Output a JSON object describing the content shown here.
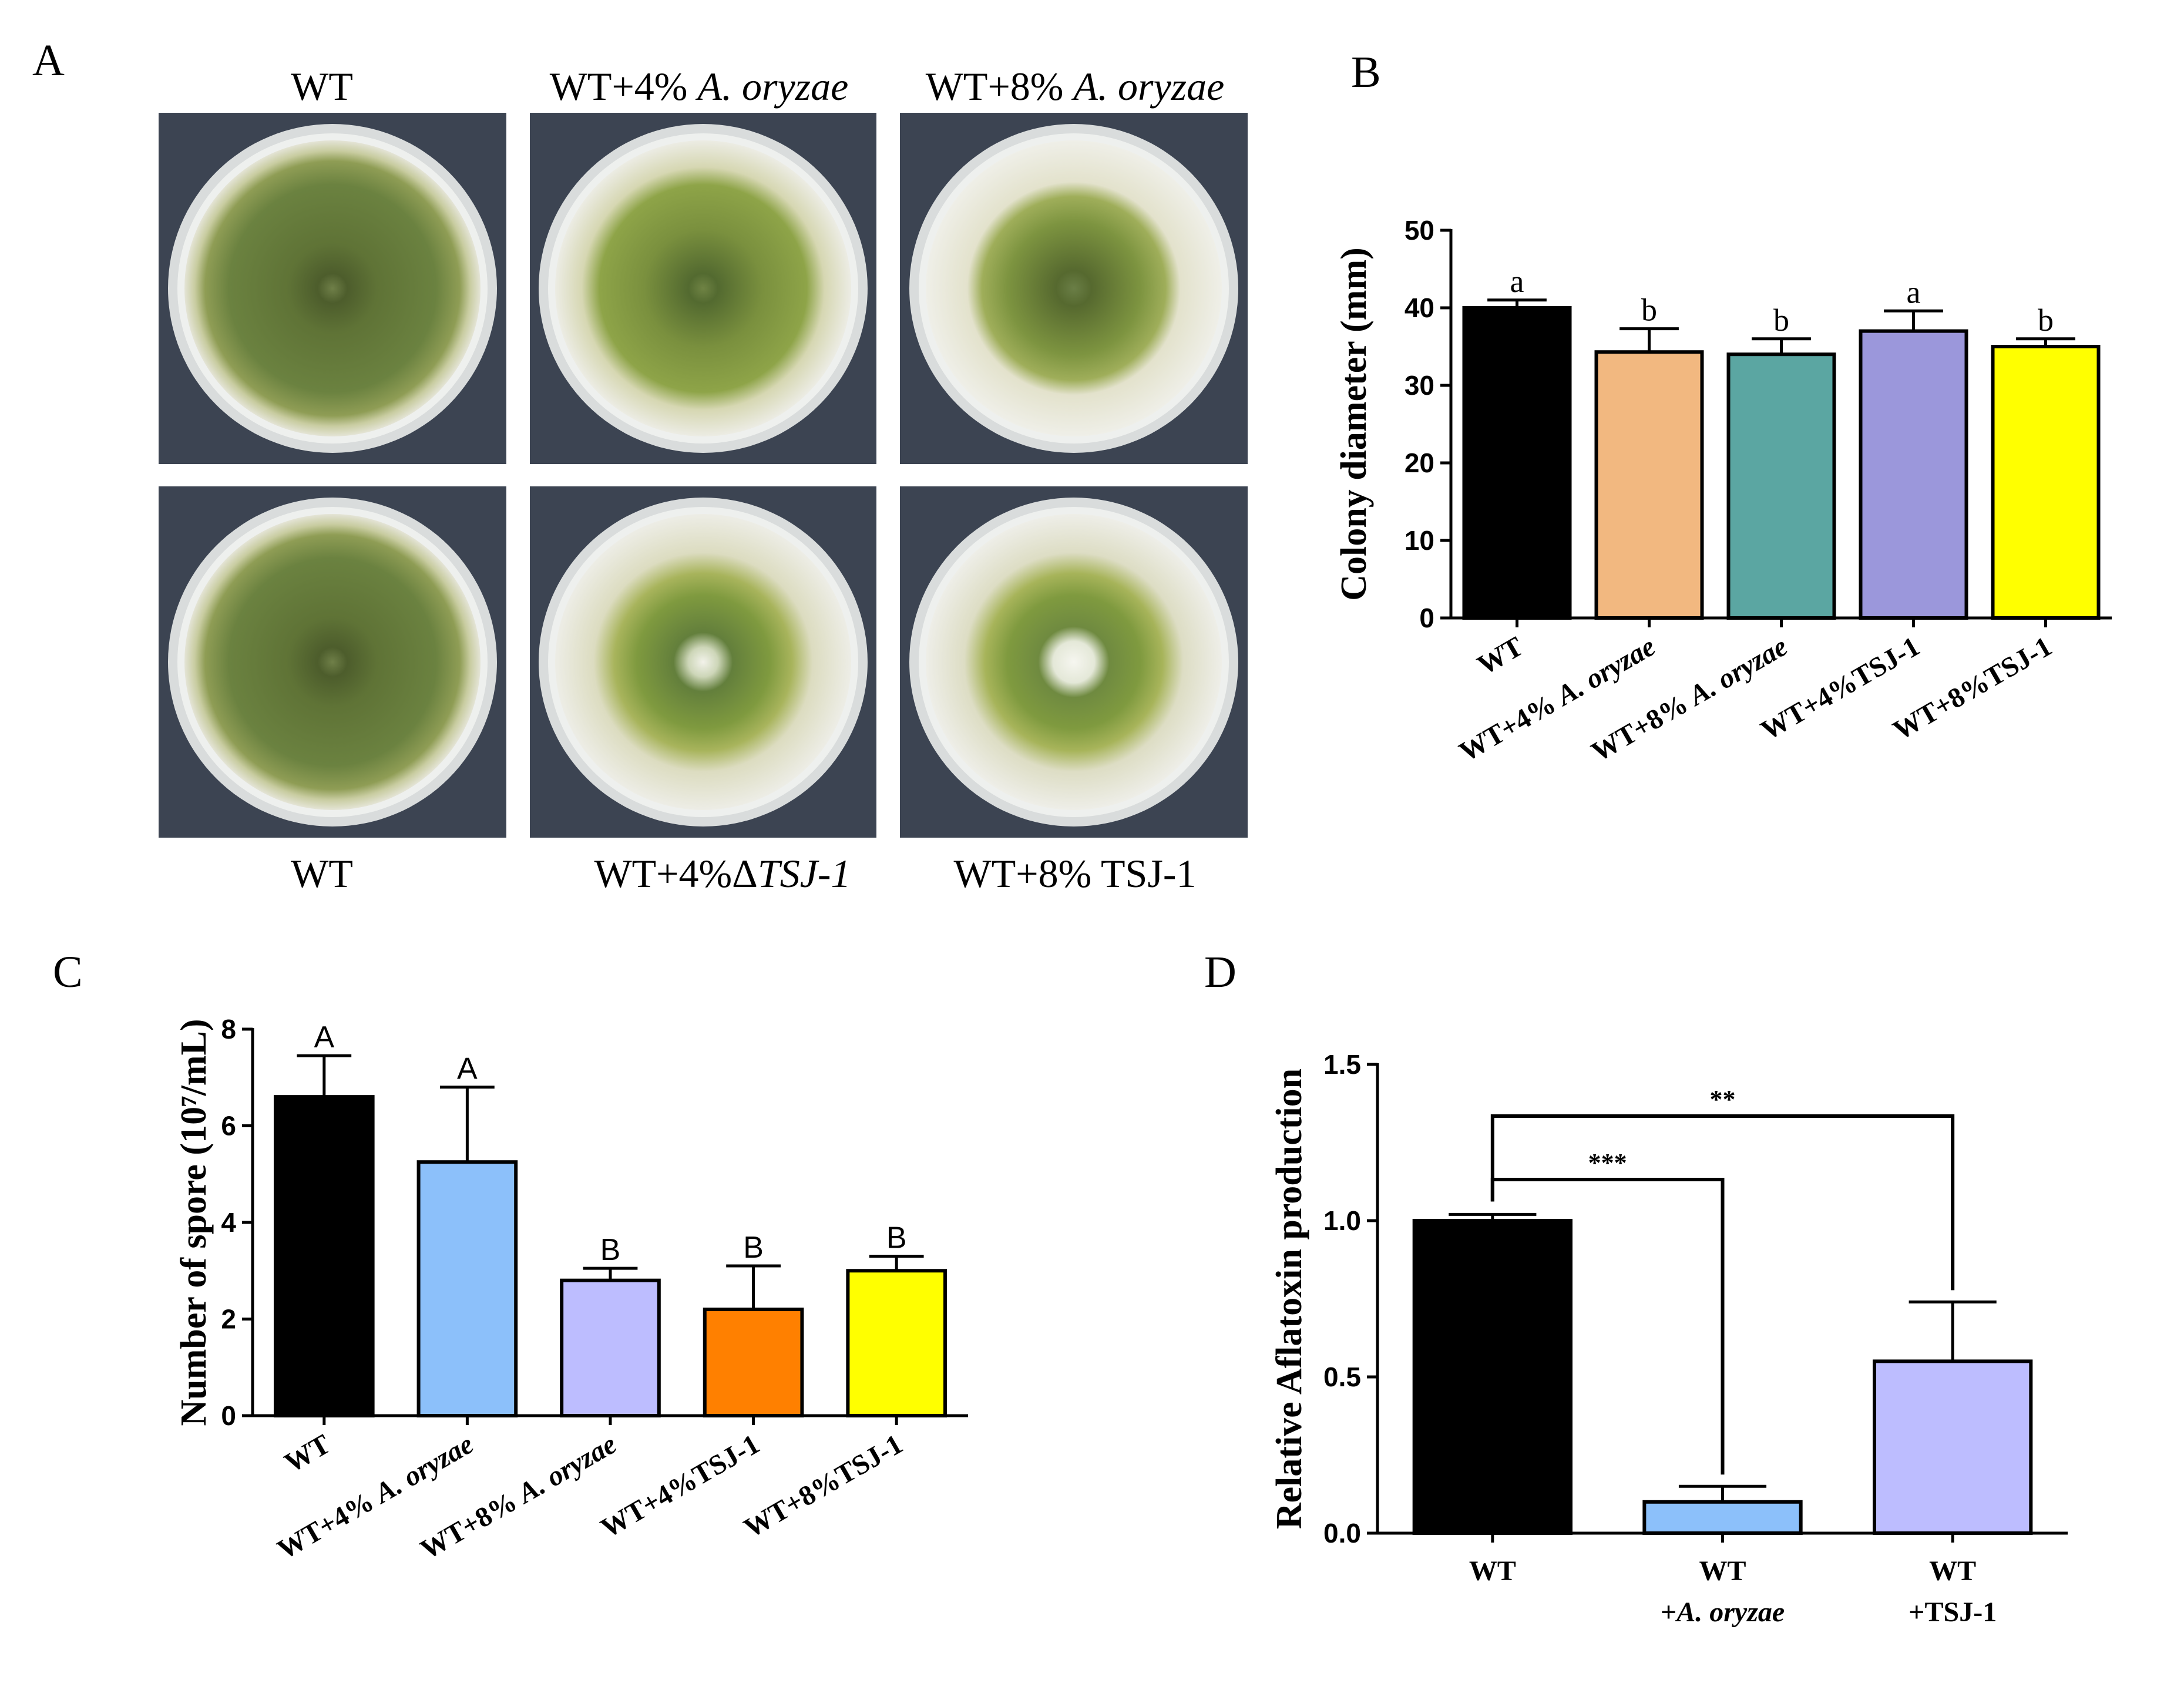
{
  "panel_a": {
    "label": "A",
    "top_labels": [
      "WT",
      "WT+4% ",
      "WT+8% "
    ],
    "top_label_italics": [
      "",
      "A. oryzae",
      "A. oryzae"
    ],
    "bottom_labels": [
      "WT",
      "WT+4%Δ",
      "WT+8% TSJ-1"
    ],
    "bottom_label_italics": [
      "",
      "TSJ-1",
      ""
    ]
  },
  "colors": {
    "black": "#000000",
    "peach": "#F2B880",
    "teal": "#5BA6A2",
    "lavender": "#9B97DB",
    "yellow": "#FFFF00",
    "skyblue": "#8CC0FA",
    "periwinkle": "#BDBDFF",
    "orange": "#FF8000"
  },
  "chart_data": [
    {
      "panel": "B",
      "type": "bar",
      "categories": [
        "WT",
        "WT+4% A. oryzae",
        "WT+8% A. oryzae",
        "WT+4%TSJ-1",
        "WT+8%TSJ-1"
      ],
      "values": [
        40,
        34.3,
        34,
        37,
        35
      ],
      "errors": [
        1,
        3,
        2,
        2.6,
        1
      ],
      "letters": [
        "a",
        "b",
        "b",
        "a",
        "b"
      ],
      "colors": [
        "#000000",
        "#F2B880",
        "#5BA6A2",
        "#9B97DB",
        "#FFFF00"
      ],
      "ylabel": "Colony diameter (mm)",
      "ylim": [
        0,
        50
      ],
      "yticks": [
        0,
        10,
        20,
        30,
        40,
        50
      ]
    },
    {
      "panel": "C",
      "type": "bar",
      "categories": [
        "WT",
        "WT+4% A. oryzae",
        "WT+8% A. oryzae",
        "WT+4%TSJ-1",
        "WT+8%TSJ-1"
      ],
      "values": [
        6.6,
        5.25,
        2.8,
        2.2,
        3.0
      ],
      "errors": [
        0.85,
        1.55,
        0.25,
        0.9,
        0.3
      ],
      "letters": [
        "A",
        "A",
        "B",
        "B",
        "B"
      ],
      "colors": [
        "#000000",
        "#8CC0FA",
        "#BDBDFF",
        "#FF8000",
        "#FFFF00"
      ],
      "ylabel": "Number of spore (10⁷/mL)",
      "ylim": [
        0,
        8
      ],
      "yticks": [
        0,
        2,
        4,
        6,
        8
      ]
    },
    {
      "panel": "D",
      "type": "bar",
      "categories": [
        "WT",
        "WT\n+A. oryzae",
        "WT\n+TSJ-1"
      ],
      "values": [
        1.0,
        0.1,
        0.55
      ],
      "errors": [
        0.02,
        0.05,
        0.19
      ],
      "colors": [
        "#000000",
        "#8CC0FA",
        "#BDBDFF"
      ],
      "ylabel": "Relative Aflatoxin production",
      "ylim": [
        0,
        1.5
      ],
      "yticks": [
        "0.0",
        "0.5",
        "1.0",
        "1.5"
      ],
      "significance": [
        {
          "from": "WT",
          "to": "WT\n+A. oryzae",
          "label": "***"
        },
        {
          "from": "WT",
          "to": "WT\n+TSJ-1",
          "label": "**"
        }
      ]
    }
  ]
}
